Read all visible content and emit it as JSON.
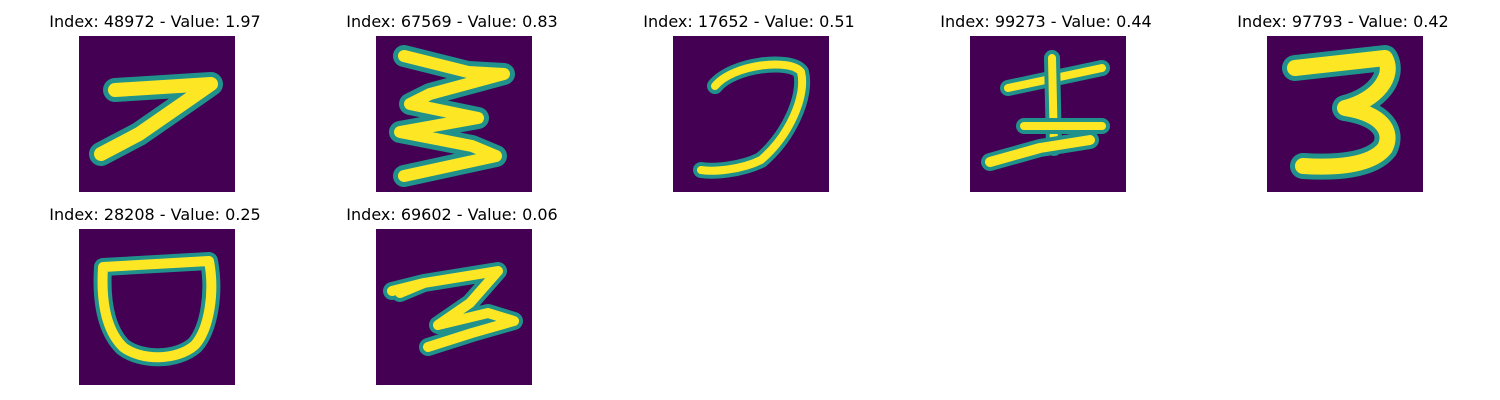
{
  "colors": {
    "background_dark": "#440154",
    "stroke_bright": "#fde725",
    "stroke_mid": "#21918c",
    "stroke_light": "#5ec962"
  },
  "panels": [
    {
      "label": "Index: 48972 - Value: 1.97",
      "glyph": "seven"
    },
    {
      "label": "Index: 67569 - Value: 0.83",
      "glyph": "sideways-e"
    },
    {
      "label": "Index: 17652 - Value: 0.51",
      "glyph": "hook"
    },
    {
      "label": "Index: 99273 - Value: 0.44",
      "glyph": "kanji-like"
    },
    {
      "label": "Index: 97793 - Value: 0.42",
      "glyph": "three"
    },
    {
      "label": "Index: 28208 - Value: 0.25",
      "glyph": "cup"
    },
    {
      "label": "Index: 69602 - Value: 0.06",
      "glyph": "zigzag-two"
    }
  ]
}
